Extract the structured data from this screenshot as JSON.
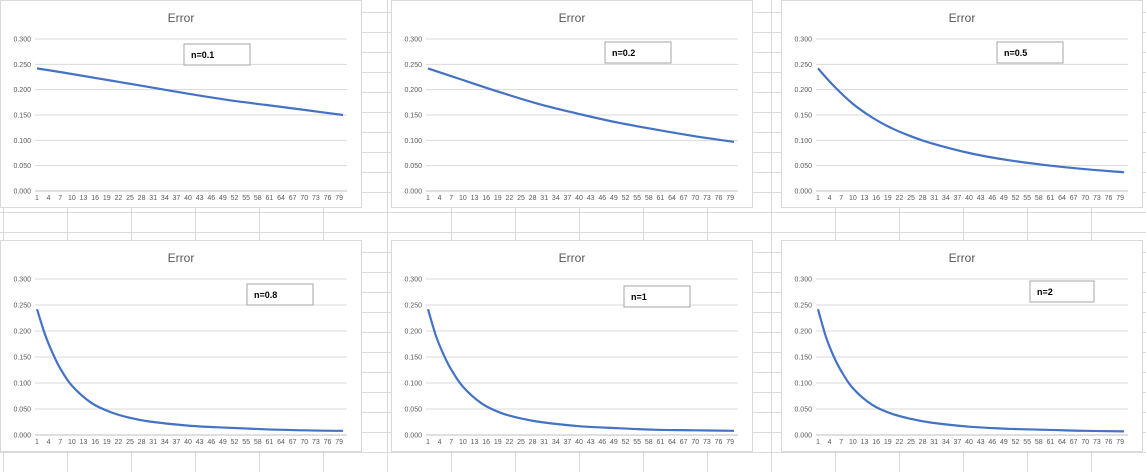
{
  "chart_data": [
    {
      "type": "line",
      "title": "Error",
      "label": "n=0.1",
      "ylim": [
        0,
        0.3
      ],
      "yticks": [
        "0.000",
        "0.050",
        "0.100",
        "0.150",
        "0.200",
        "0.250",
        "0.300"
      ],
      "xticks": [
        "1",
        "4",
        "7",
        "10",
        "13",
        "16",
        "19",
        "22",
        "25",
        "28",
        "31",
        "34",
        "37",
        "40",
        "43",
        "46",
        "49",
        "52",
        "55",
        "58",
        "61",
        "64",
        "67",
        "70",
        "73",
        "76",
        "79"
      ],
      "series": [
        {
          "x": [
            1,
            10,
            20,
            30,
            40,
            50,
            60,
            70,
            80
          ],
          "values": [
            0.242,
            0.231,
            0.218,
            0.205,
            0.192,
            0.18,
            0.17,
            0.16,
            0.15
          ]
        }
      ]
    },
    {
      "type": "line",
      "title": "Error",
      "label": "n=0.2",
      "ylim": [
        0,
        0.3
      ],
      "yticks": [
        "0.000",
        "0.050",
        "0.100",
        "0.150",
        "0.200",
        "0.250",
        "0.300"
      ],
      "xticks": [
        "1",
        "4",
        "7",
        "10",
        "13",
        "16",
        "19",
        "22",
        "25",
        "28",
        "31",
        "34",
        "37",
        "40",
        "43",
        "46",
        "49",
        "52",
        "55",
        "58",
        "61",
        "64",
        "67",
        "70",
        "73",
        "76",
        "79"
      ],
      "series": [
        {
          "x": [
            1,
            10,
            20,
            30,
            40,
            50,
            60,
            70,
            80
          ],
          "values": [
            0.242,
            0.219,
            0.194,
            0.171,
            0.152,
            0.135,
            0.121,
            0.108,
            0.097
          ]
        }
      ]
    },
    {
      "type": "line",
      "title": "Error",
      "label": "n=0.5",
      "ylim": [
        0,
        0.3
      ],
      "yticks": [
        "0.000",
        "0.050",
        "0.100",
        "0.150",
        "0.200",
        "0.250",
        "0.300"
      ],
      "xticks": [
        "1",
        "4",
        "7",
        "10",
        "13",
        "16",
        "19",
        "22",
        "25",
        "28",
        "31",
        "34",
        "37",
        "40",
        "43",
        "46",
        "49",
        "52",
        "55",
        "58",
        "61",
        "64",
        "67",
        "70",
        "73",
        "76",
        "79"
      ],
      "series": [
        {
          "x": [
            1,
            5,
            10,
            15,
            20,
            25,
            30,
            40,
            50,
            60,
            70,
            80
          ],
          "values": [
            0.242,
            0.208,
            0.172,
            0.145,
            0.124,
            0.108,
            0.095,
            0.075,
            0.061,
            0.051,
            0.043,
            0.037
          ]
        }
      ]
    },
    {
      "type": "line",
      "title": "Error",
      "label": "n=0.8",
      "ylim": [
        0,
        0.3
      ],
      "yticks": [
        "0.000",
        "0.050",
        "0.100",
        "0.150",
        "0.200",
        "0.250",
        "0.300"
      ],
      "xticks": [
        "1",
        "4",
        "7",
        "10",
        "13",
        "16",
        "19",
        "22",
        "25",
        "28",
        "31",
        "34",
        "37",
        "40",
        "43",
        "46",
        "49",
        "52",
        "55",
        "58",
        "61",
        "64",
        "67",
        "70",
        "73",
        "76",
        "79"
      ],
      "series": [
        {
          "x": [
            1,
            3,
            5,
            7,
            10,
            15,
            20,
            25,
            30,
            40,
            50,
            60,
            70,
            80
          ],
          "values": [
            0.242,
            0.195,
            0.158,
            0.128,
            0.095,
            0.062,
            0.044,
            0.033,
            0.026,
            0.018,
            0.014,
            0.011,
            0.009,
            0.008
          ]
        }
      ]
    },
    {
      "type": "line",
      "title": "Error",
      "label": "n=1",
      "ylim": [
        0,
        0.3
      ],
      "yticks": [
        "0.000",
        "0.050",
        "0.100",
        "0.150",
        "0.200",
        "0.250",
        "0.300"
      ],
      "xticks": [
        "1",
        "4",
        "7",
        "10",
        "13",
        "16",
        "19",
        "22",
        "25",
        "28",
        "31",
        "34",
        "37",
        "40",
        "43",
        "46",
        "49",
        "52",
        "55",
        "58",
        "61",
        "64",
        "67",
        "70",
        "73",
        "76",
        "79"
      ],
      "series": [
        {
          "x": [
            1,
            3,
            5,
            7,
            10,
            15,
            20,
            25,
            30,
            40,
            50,
            60,
            70,
            80
          ],
          "values": [
            0.242,
            0.192,
            0.155,
            0.126,
            0.093,
            0.06,
            0.042,
            0.032,
            0.025,
            0.017,
            0.013,
            0.01,
            0.009,
            0.008
          ]
        }
      ]
    },
    {
      "type": "line",
      "title": "Error",
      "label": "n=2",
      "ylim": [
        0,
        0.3
      ],
      "yticks": [
        "0.000",
        "0.050",
        "0.100",
        "0.150",
        "0.200",
        "0.250",
        "0.300"
      ],
      "xticks": [
        "1",
        "4",
        "7",
        "10",
        "13",
        "16",
        "19",
        "22",
        "25",
        "28",
        "31",
        "34",
        "37",
        "40",
        "43",
        "46",
        "49",
        "52",
        "55",
        "58",
        "61",
        "64",
        "67",
        "70",
        "73",
        "76",
        "79"
      ],
      "series": [
        {
          "x": [
            1,
            3,
            5,
            7,
            10,
            15,
            20,
            25,
            30,
            40,
            50,
            60,
            70,
            80
          ],
          "values": [
            0.242,
            0.19,
            0.152,
            0.123,
            0.09,
            0.058,
            0.041,
            0.031,
            0.024,
            0.016,
            0.012,
            0.01,
            0.008,
            0.007
          ]
        }
      ]
    }
  ]
}
